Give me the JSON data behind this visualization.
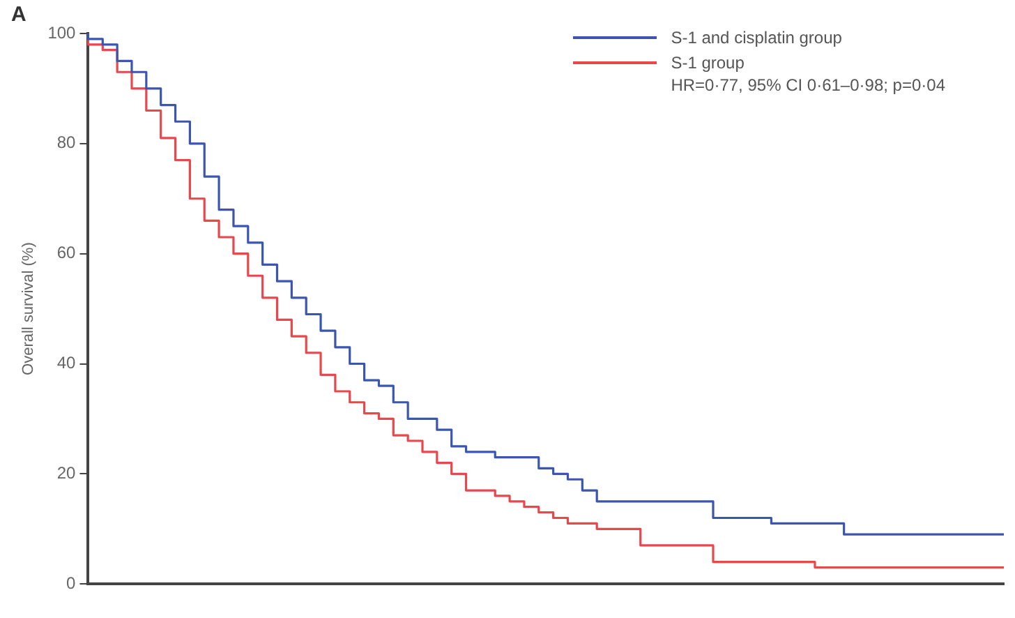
{
  "chart_data": {
    "type": "step",
    "ylabel": "Overall survival (%)",
    "annotations": [
      "A",
      "HR=0·77, 95% CI 0·61–0·98; p=0·04"
    ],
    "categories": [
      null,
      null,
      null,
      null,
      null,
      null,
      null,
      null,
      null,
      null,
      null,
      null,
      null,
      null,
      null,
      null,
      null,
      null,
      null,
      null,
      null,
      null,
      null,
      null,
      null,
      null,
      null,
      null,
      null,
      null,
      null,
      null,
      null,
      null,
      null,
      null,
      null,
      null,
      null,
      null,
      null,
      null,
      null,
      null,
      null,
      null,
      null,
      null,
      null,
      null,
      null,
      null,
      null,
      null,
      null,
      null,
      null,
      null,
      null,
      null,
      null,
      null,
      null,
      null
    ],
    "series": [
      {
        "name": "S-1 and cisplatin group",
        "color": "#3a56b0",
        "values": [
          100,
          99,
          98,
          95,
          93,
          90,
          87,
          84,
          80,
          74,
          68,
          65,
          62,
          58,
          55,
          52,
          49,
          46,
          43,
          40,
          37,
          36,
          33,
          30,
          30,
          28,
          25,
          24,
          24,
          23,
          23,
          23,
          21,
          20,
          19,
          17,
          15,
          15,
          15,
          15,
          15,
          15,
          15,
          15,
          12,
          12,
          12,
          12,
          11,
          11,
          11,
          11,
          11,
          9,
          9,
          9,
          9,
          9,
          9,
          9,
          9,
          9,
          9,
          9
        ]
      },
      {
        "name": "S-1 group",
        "color": "#e8474c",
        "values": [
          100,
          98,
          97,
          93,
          90,
          86,
          81,
          77,
          70,
          66,
          63,
          60,
          56,
          52,
          48,
          45,
          42,
          38,
          35,
          33,
          31,
          30,
          27,
          26,
          24,
          22,
          20,
          17,
          17,
          16,
          15,
          14,
          13,
          12,
          11,
          11,
          10,
          10,
          10,
          7,
          7,
          7,
          7,
          7,
          4,
          4,
          4,
          4,
          4,
          4,
          4,
          3,
          3,
          3,
          3,
          3,
          3,
          3,
          3,
          3,
          3,
          3,
          3,
          3
        ]
      }
    ],
    "ylim": [
      0,
      100
    ],
    "yticks": [
      0,
      20,
      40,
      60,
      80,
      100
    ],
    "grid": false,
    "legend": "top right",
    "line_style": "solid",
    "marker": "none"
  }
}
